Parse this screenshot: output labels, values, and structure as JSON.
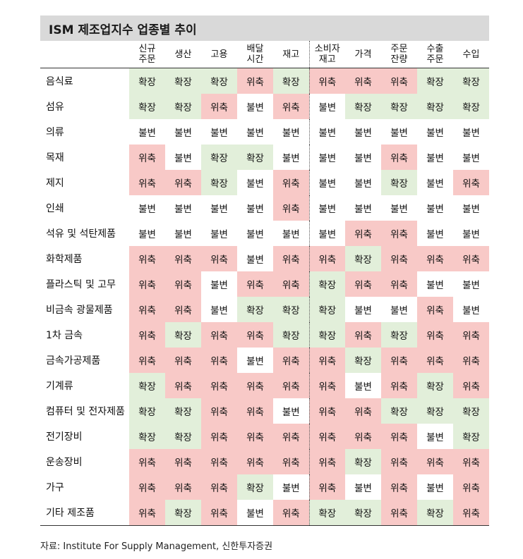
{
  "title": "ISM 제조업지수 업종별 추이",
  "columns": [
    [
      "신규",
      "주문"
    ],
    [
      "생산"
    ],
    [
      "고용"
    ],
    [
      "배달",
      "시간"
    ],
    [
      "재고"
    ],
    [
      "소비자",
      "재고"
    ],
    [
      "가격"
    ],
    [
      "주문",
      "잔량"
    ],
    [
      "수출",
      "주문"
    ],
    [
      "수입"
    ]
  ],
  "status_colors": {
    "확장": "#e2efda",
    "위축": "#f8c9c7",
    "불변": "#ffffff"
  },
  "rows": [
    {
      "label": "음식료",
      "values": [
        "확장",
        "확장",
        "확장",
        "위축",
        "확장",
        "위축",
        "위축",
        "위축",
        "확장",
        "확장"
      ]
    },
    {
      "label": "섬유",
      "values": [
        "확장",
        "확장",
        "위축",
        "불변",
        "위축",
        "불변",
        "확장",
        "확장",
        "확장",
        "확장"
      ]
    },
    {
      "label": "의류",
      "values": [
        "불변",
        "불변",
        "불변",
        "불변",
        "불변",
        "불변",
        "불변",
        "불변",
        "불변",
        "불변"
      ]
    },
    {
      "label": "목재",
      "values": [
        "위축",
        "불변",
        "확장",
        "확장",
        "불변",
        "불변",
        "불변",
        "위축",
        "불변",
        "불변"
      ]
    },
    {
      "label": "제지",
      "values": [
        "위축",
        "위축",
        "확장",
        "불변",
        "위축",
        "불변",
        "불변",
        "확장",
        "불변",
        "위축"
      ]
    },
    {
      "label": "인쇄",
      "values": [
        "불변",
        "불변",
        "불변",
        "불변",
        "위축",
        "불변",
        "불변",
        "불변",
        "불변",
        "불변"
      ]
    },
    {
      "label": "석유 및 석탄제품",
      "values": [
        "불변",
        "불변",
        "불변",
        "불변",
        "불변",
        "불변",
        "위축",
        "위축",
        "불변",
        "불변"
      ]
    },
    {
      "label": "화학제품",
      "values": [
        "위축",
        "위축",
        "위축",
        "불변",
        "위축",
        "위축",
        "확장",
        "위축",
        "위축",
        "위축"
      ]
    },
    {
      "label": "플라스틱 및 고무",
      "values": [
        "위축",
        "위축",
        "불변",
        "위축",
        "위축",
        "확장",
        "위축",
        "위축",
        "불변",
        "불변"
      ]
    },
    {
      "label": "비금속 광물제품",
      "values": [
        "위축",
        "위축",
        "불변",
        "확장",
        "확장",
        "확장",
        "불변",
        "불변",
        "위축",
        "불변"
      ]
    },
    {
      "label": "1차 금속",
      "values": [
        "위축",
        "확장",
        "위축",
        "위축",
        "확장",
        "확장",
        "위축",
        "확장",
        "위축",
        "위축"
      ]
    },
    {
      "label": "금속가공제품",
      "values": [
        "위축",
        "위축",
        "위축",
        "불변",
        "위축",
        "위축",
        "확장",
        "위축",
        "위축",
        "위축"
      ]
    },
    {
      "label": "기계류",
      "values": [
        "확장",
        "위축",
        "위축",
        "위축",
        "위축",
        "위축",
        "불변",
        "위축",
        "확장",
        "위축"
      ]
    },
    {
      "label": "컴퓨터 및 전자제품",
      "values": [
        "확장",
        "확장",
        "위축",
        "위축",
        "불변",
        "위축",
        "위축",
        "확장",
        "확장",
        "확장"
      ]
    },
    {
      "label": "전기장비",
      "values": [
        "확장",
        "확장",
        "위축",
        "위축",
        "위축",
        "위축",
        "위축",
        "위축",
        "불변",
        "확장"
      ]
    },
    {
      "label": "운송장비",
      "values": [
        "위축",
        "위축",
        "위축",
        "위축",
        "위축",
        "위축",
        "확장",
        "위축",
        "위축",
        "위축"
      ]
    },
    {
      "label": "가구",
      "values": [
        "위축",
        "위축",
        "위축",
        "확장",
        "불변",
        "위축",
        "불변",
        "위축",
        "불변",
        "위축"
      ]
    },
    {
      "label": "기타 제조품",
      "values": [
        "위축",
        "확장",
        "위축",
        "불변",
        "위축",
        "확장",
        "확장",
        "위축",
        "확장",
        "위축"
      ]
    }
  ],
  "source": "자료: Institute For Supply Management, 신한투자증권"
}
